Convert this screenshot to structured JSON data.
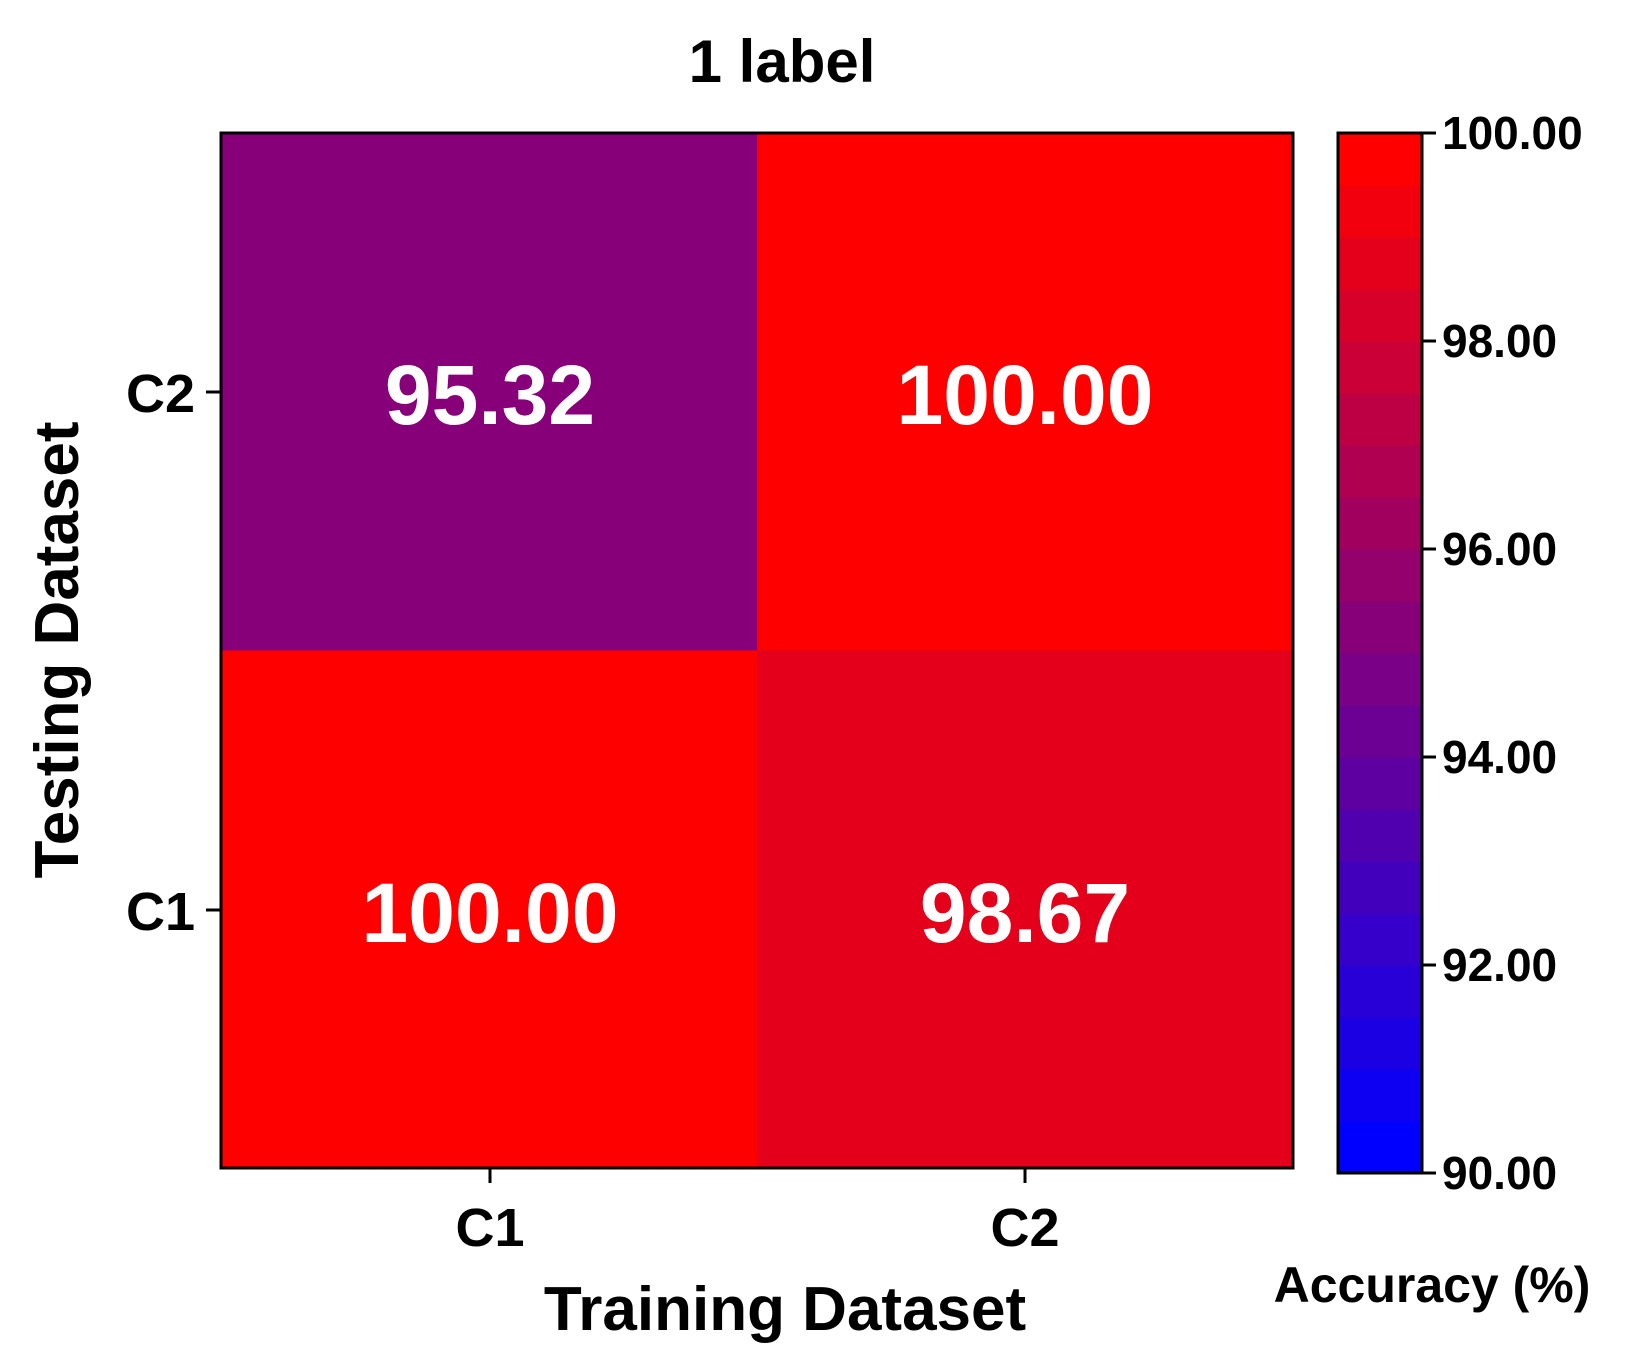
{
  "chart_data": {
    "type": "heatmap",
    "title": "1 label",
    "xlabel": "Training Dataset",
    "ylabel": "Testing Dataset",
    "x_categories": [
      "C1",
      "C2"
    ],
    "y_categories": [
      "C2",
      "C1"
    ],
    "values": [
      [
        95.32,
        100.0
      ],
      [
        100.0,
        98.67
      ]
    ],
    "value_labels": [
      [
        "95.32",
        "100.00"
      ],
      [
        "100.00",
        "98.67"
      ]
    ],
    "colorbar": {
      "label": "Accuracy (%)",
      "range": [
        90,
        100
      ],
      "ticks": [
        100,
        98,
        96,
        94,
        92,
        90
      ],
      "tick_labels": [
        "100.00",
        "98.00",
        "96.00",
        "94.00",
        "92.00",
        "90.00"
      ],
      "levels": 20,
      "colors": {
        "low": "#0000ff",
        "mid": "#800080",
        "high": "#ff0000"
      }
    }
  }
}
